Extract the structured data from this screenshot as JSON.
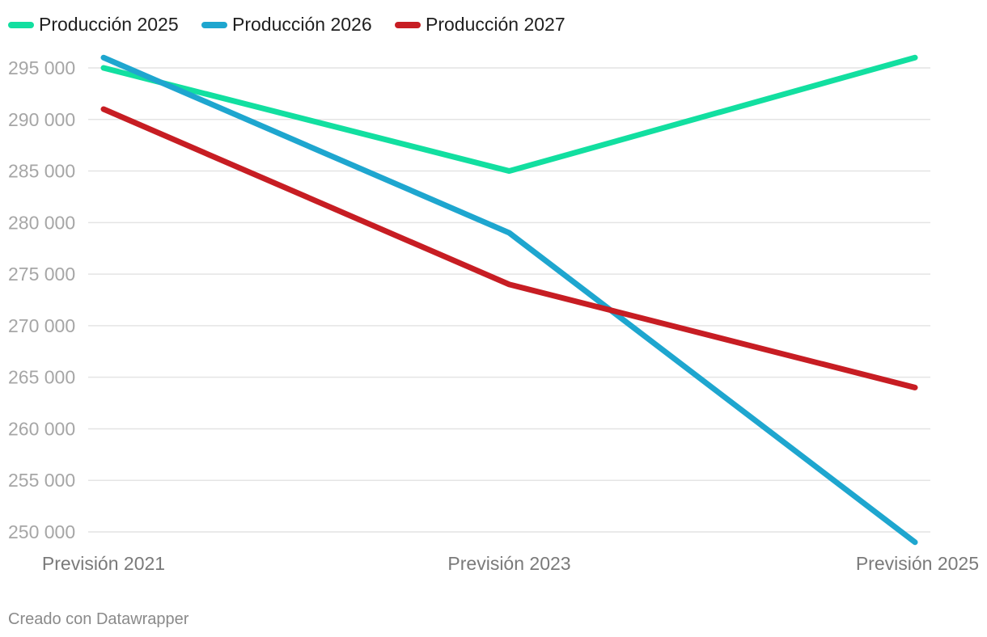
{
  "chart_data": {
    "type": "line",
    "categories": [
      "Previsión 2021",
      "Previsión 2023",
      "Previsión 2025"
    ],
    "series": [
      {
        "name": "Producción 2025",
        "color": "#12dfa0",
        "values": [
          295000,
          285000,
          296000
        ]
      },
      {
        "name": "Producción 2026",
        "color": "#1ea6cf",
        "values": [
          296000,
          279000,
          249000
        ]
      },
      {
        "name": "Producción 2027",
        "color": "#c71d23",
        "values": [
          291000,
          274000,
          264000
        ]
      }
    ],
    "ylim": [
      250000,
      295000
    ],
    "yticks": [
      295000,
      290000,
      285000,
      280000,
      275000,
      270000,
      265000,
      260000,
      255000,
      250000
    ],
    "ytick_labels": [
      "295 000",
      "290 000",
      "285 000",
      "280 000",
      "275 000",
      "270 000",
      "265 000",
      "260 000",
      "255 000",
      "250 000"
    ],
    "grid": true,
    "legend": "top-left",
    "title": "",
    "xlabel": "",
    "ylabel": ""
  },
  "footer": {
    "credit": "Creado con Datawrapper"
  }
}
